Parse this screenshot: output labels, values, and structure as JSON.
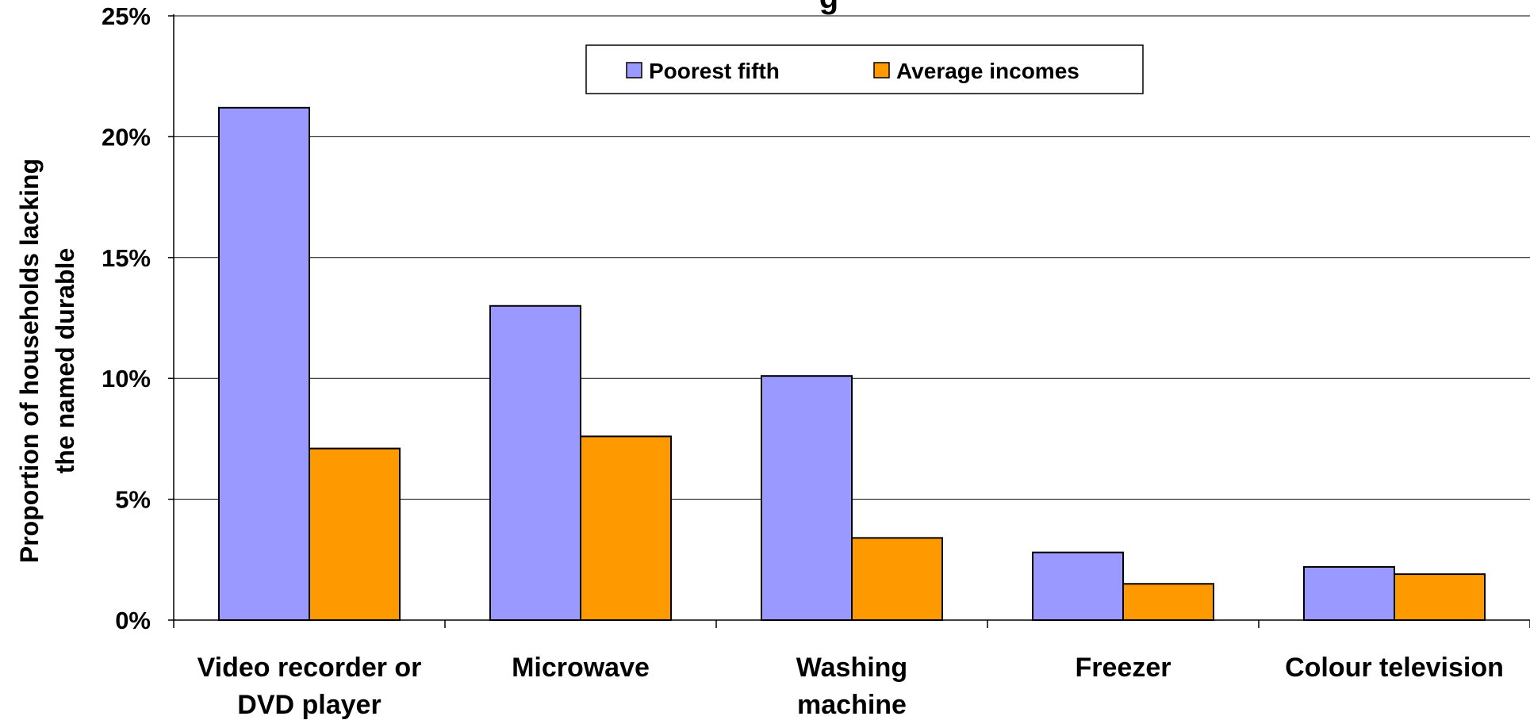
{
  "chart_data": {
    "type": "bar",
    "title": "g",
    "ylabel_lines": [
      "Proportion of households lacking",
      "the named durable"
    ],
    "xlabel": "",
    "ylim": [
      0,
      0.25
    ],
    "yticks": [
      0,
      0.05,
      0.1,
      0.15,
      0.2,
      0.25
    ],
    "ytick_labels": [
      "0%",
      "5%",
      "10%",
      "15%",
      "20%",
      "25%"
    ],
    "categories": [
      [
        "Video recorder or",
        "DVD player"
      ],
      [
        "Microwave"
      ],
      [
        "Washing",
        "machine"
      ],
      [
        "Freezer"
      ],
      [
        "Colour television"
      ]
    ],
    "series": [
      {
        "name": "Poorest fifth",
        "color": "#9999ff",
        "values": [
          0.212,
          0.13,
          0.101,
          0.028,
          0.022
        ]
      },
      {
        "name": "Average incomes",
        "color": "#ff9900",
        "values": [
          0.071,
          0.076,
          0.034,
          0.015,
          0.019
        ]
      }
    ],
    "grid": true,
    "legend_position": "top-center"
  }
}
